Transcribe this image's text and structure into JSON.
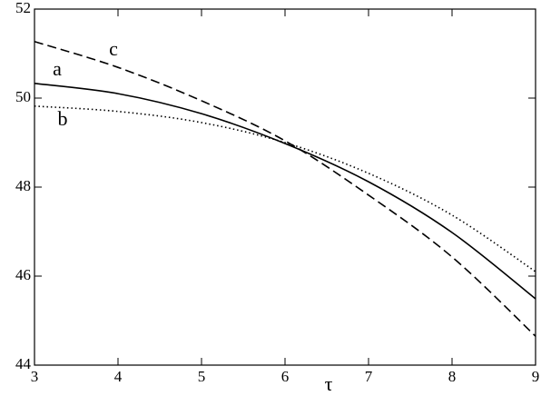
{
  "chart_data": {
    "type": "line",
    "x_label": "τ",
    "x": [
      3,
      4,
      5,
      6,
      7,
      8,
      9
    ],
    "series": [
      {
        "name": "a",
        "color": "#000000",
        "dash": "solid",
        "values": [
          50.33,
          50.1,
          49.65,
          48.98,
          48.12,
          46.98,
          45.49
        ]
      },
      {
        "name": "b",
        "color": "#000000",
        "dash": "dotted",
        "values": [
          49.82,
          49.7,
          49.45,
          49.0,
          48.31,
          47.37,
          46.1
        ]
      },
      {
        "name": "c",
        "color": "#000000",
        "dash": "dashed",
        "values": [
          51.27,
          50.69,
          49.94,
          49.04,
          47.82,
          46.43,
          44.65
        ]
      }
    ],
    "xlim": [
      3,
      9
    ],
    "xticks": [
      3,
      4,
      5,
      6,
      7,
      8,
      9
    ],
    "ylim": [
      44,
      52
    ],
    "yticks": [
      44,
      46,
      48,
      50,
      52
    ]
  }
}
